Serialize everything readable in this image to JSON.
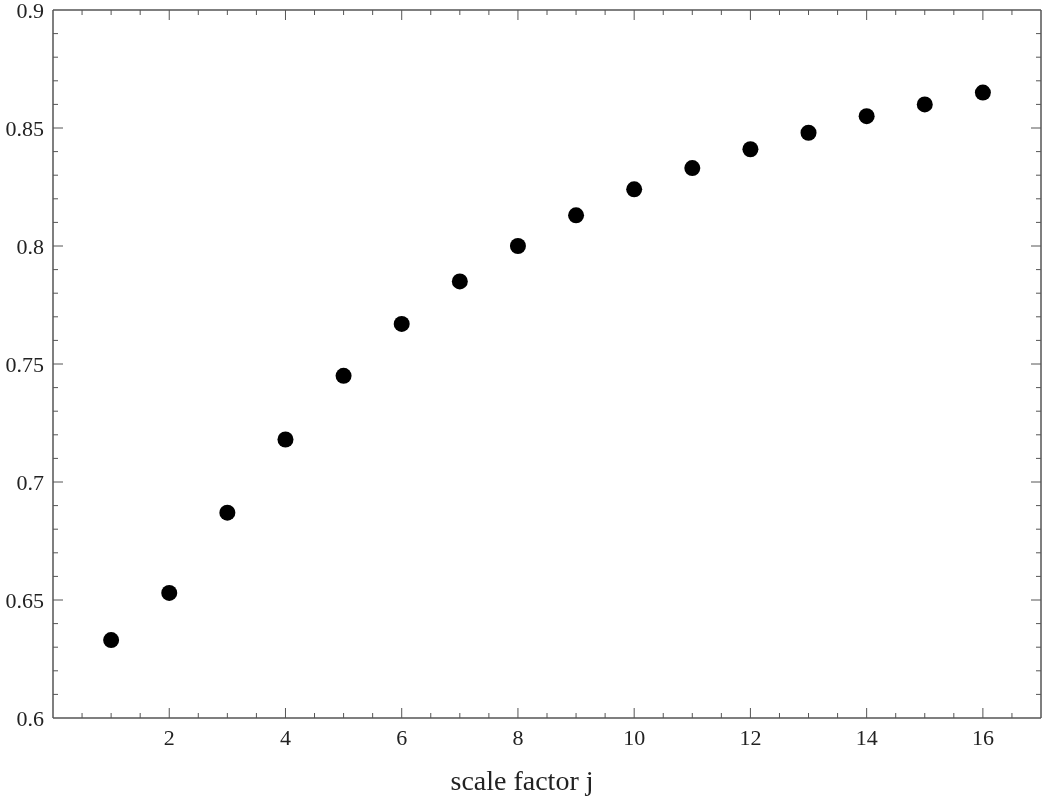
{
  "chart_data": {
    "type": "scatter",
    "xlabel": "scale factor j",
    "x": [
      1,
      2,
      3,
      4,
      5,
      6,
      7,
      8,
      9,
      10,
      11,
      12,
      13,
      14,
      15,
      16
    ],
    "values": [
      0.633,
      0.653,
      0.687,
      0.718,
      0.745,
      0.767,
      0.785,
      0.8,
      0.813,
      0.824,
      0.833,
      0.841,
      0.848,
      0.855,
      0.86,
      0.865
    ],
    "color": "#000000",
    "marker": "circle",
    "xlim": [
      0,
      17
    ],
    "ylim": [
      0.6,
      0.9
    ],
    "xticks": [
      {
        "value": 0.5,
        "label": null
      },
      {
        "value": 1,
        "label": null
      },
      {
        "value": 1.5,
        "label": null
      },
      2,
      {
        "value": 2.5,
        "label": null
      },
      {
        "value": 3,
        "label": null
      },
      {
        "value": 3.5,
        "label": null
      },
      4,
      {
        "value": 4.5,
        "label": null
      },
      {
        "value": 5,
        "label": null
      },
      {
        "value": 5.5,
        "label": null
      },
      6,
      {
        "value": 6.5,
        "label": null
      },
      {
        "value": 7,
        "label": null
      },
      {
        "value": 7.5,
        "label": null
      },
      8,
      {
        "value": 8.5,
        "label": null
      },
      {
        "value": 9,
        "label": null
      },
      {
        "value": 9.5,
        "label": null
      },
      10,
      {
        "value": 10.5,
        "label": null
      },
      {
        "value": 11,
        "label": null
      },
      {
        "value": 11.5,
        "label": null
      },
      12,
      {
        "value": 12.5,
        "label": null
      },
      {
        "value": 13,
        "label": null
      },
      {
        "value": 13.5,
        "label": null
      },
      14,
      {
        "value": 14.5,
        "label": null
      },
      {
        "value": 15,
        "label": null
      },
      {
        "value": 15.5,
        "label": null
      },
      16,
      {
        "value": 16.5,
        "label": null
      }
    ],
    "yticks": [
      0.6,
      {
        "value": 0.61,
        "label": null
      },
      {
        "value": 0.62,
        "label": null
      },
      {
        "value": 0.63,
        "label": null
      },
      {
        "value": 0.64,
        "label": null
      },
      0.65,
      {
        "value": 0.66,
        "label": null
      },
      {
        "value": 0.67,
        "label": null
      },
      {
        "value": 0.68,
        "label": null
      },
      {
        "value": 0.69,
        "label": null
      },
      0.7,
      {
        "value": 0.71,
        "label": null
      },
      {
        "value": 0.72,
        "label": null
      },
      {
        "value": 0.73,
        "label": null
      },
      {
        "value": 0.74,
        "label": null
      },
      0.75,
      {
        "value": 0.76,
        "label": null
      },
      {
        "value": 0.77,
        "label": null
      },
      {
        "value": 0.78,
        "label": null
      },
      {
        "value": 0.79,
        "label": null
      },
      0.8,
      {
        "value": 0.81,
        "label": null
      },
      {
        "value": 0.82,
        "label": null
      },
      {
        "value": 0.83,
        "label": null
      },
      {
        "value": 0.84,
        "label": null
      },
      0.85,
      {
        "value": 0.86,
        "label": null
      },
      {
        "value": 0.87,
        "label": null
      },
      {
        "value": 0.88,
        "label": null
      },
      {
        "value": 0.89,
        "label": null
      },
      0.9
    ]
  }
}
